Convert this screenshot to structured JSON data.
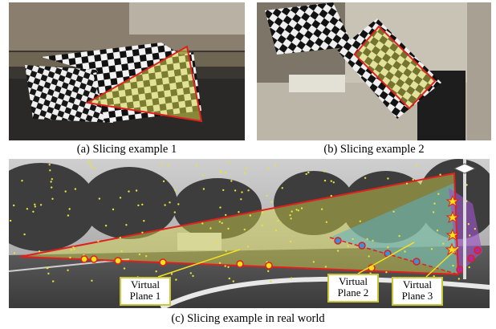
{
  "panels": {
    "a": {
      "caption": "(a) Slicing example 1"
    },
    "b": {
      "caption": "(b) Slicing example 2"
    },
    "c": {
      "caption": "(c) Slicing example in real world"
    }
  },
  "plane_labels": [
    {
      "line1": "Virtual",
      "line2": "Plane 1"
    },
    {
      "line1": "Virtual",
      "line2": "Plane 2"
    },
    {
      "line1": "Virtual",
      "line2": "Plane 3"
    }
  ],
  "colors": {
    "slice_outline": "#e0201c",
    "plane1_fill": "#d6d64a",
    "plane2_fill": "#5fb3c8",
    "plane3_fill": "#9a55c4",
    "marker_plane1": "#f7e11c",
    "marker_plane2": "#3f8fd6",
    "marker_plane3": "#b02a9e",
    "label_border": "#c9c63a",
    "feature_points": "#e6e23a"
  }
}
